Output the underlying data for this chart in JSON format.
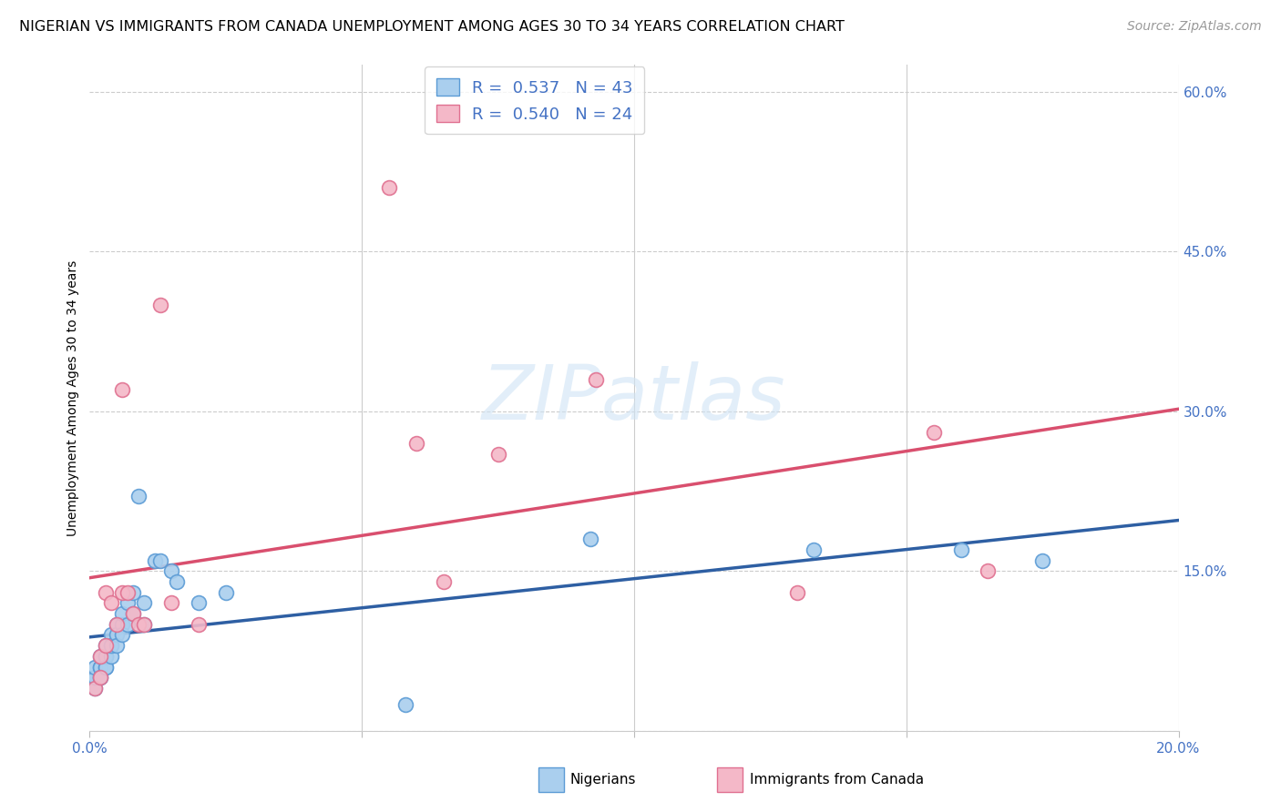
{
  "title": "NIGERIAN VS IMMIGRANTS FROM CANADA UNEMPLOYMENT AMONG AGES 30 TO 34 YEARS CORRELATION CHART",
  "source": "Source: ZipAtlas.com",
  "ylabel": "Unemployment Among Ages 30 to 34 years",
  "watermark": "ZIPatlas",
  "xlim": [
    0.0,
    0.2
  ],
  "ylim": [
    0.0,
    0.625
  ],
  "yticks": [
    0.0,
    0.15,
    0.3,
    0.45,
    0.6
  ],
  "ytick_labels": [
    "",
    "15.0%",
    "30.0%",
    "45.0%",
    "60.0%"
  ],
  "xtick_positions": [
    0.0,
    0.05,
    0.1,
    0.15,
    0.2
  ],
  "xtick_labels": [
    "0.0%",
    "",
    "",
    "",
    "20.0%"
  ],
  "nigerian_R": 0.537,
  "nigerian_N": 43,
  "canada_R": 0.54,
  "canada_N": 24,
  "nigerian_color": "#aacfee",
  "nigerian_edge_color": "#5b9bd5",
  "canada_color": "#f4b8c8",
  "canada_edge_color": "#e07090",
  "nigerian_line_color": "#2e5fa3",
  "canada_line_color": "#d94f6e",
  "nigerian_x": [
    0.001,
    0.001,
    0.001,
    0.001,
    0.002,
    0.002,
    0.002,
    0.002,
    0.002,
    0.003,
    0.003,
    0.003,
    0.003,
    0.003,
    0.003,
    0.004,
    0.004,
    0.004,
    0.004,
    0.005,
    0.005,
    0.005,
    0.006,
    0.006,
    0.006,
    0.007,
    0.007,
    0.008,
    0.008,
    0.009,
    0.01,
    0.01,
    0.012,
    0.013,
    0.015,
    0.016,
    0.02,
    0.025,
    0.058,
    0.092,
    0.133,
    0.16,
    0.175
  ],
  "nigerian_y": [
    0.04,
    0.05,
    0.05,
    0.06,
    0.05,
    0.06,
    0.06,
    0.07,
    0.05,
    0.07,
    0.06,
    0.07,
    0.07,
    0.08,
    0.06,
    0.08,
    0.09,
    0.07,
    0.08,
    0.1,
    0.09,
    0.08,
    0.1,
    0.11,
    0.09,
    0.12,
    0.1,
    0.13,
    0.11,
    0.22,
    0.12,
    0.1,
    0.16,
    0.16,
    0.15,
    0.14,
    0.12,
    0.13,
    0.025,
    0.18,
    0.17,
    0.17,
    0.16
  ],
  "canada_x": [
    0.001,
    0.002,
    0.002,
    0.003,
    0.003,
    0.004,
    0.005,
    0.006,
    0.006,
    0.007,
    0.008,
    0.009,
    0.01,
    0.013,
    0.015,
    0.02,
    0.055,
    0.06,
    0.065,
    0.075,
    0.093,
    0.13,
    0.155,
    0.165
  ],
  "canada_y": [
    0.04,
    0.05,
    0.07,
    0.08,
    0.13,
    0.12,
    0.1,
    0.13,
    0.32,
    0.13,
    0.11,
    0.1,
    0.1,
    0.4,
    0.12,
    0.1,
    0.51,
    0.27,
    0.14,
    0.26,
    0.33,
    0.13,
    0.28,
    0.15
  ],
  "title_fontsize": 11.5,
  "axis_label_fontsize": 10,
  "tick_fontsize": 11,
  "legend_fontsize": 13,
  "source_fontsize": 10
}
